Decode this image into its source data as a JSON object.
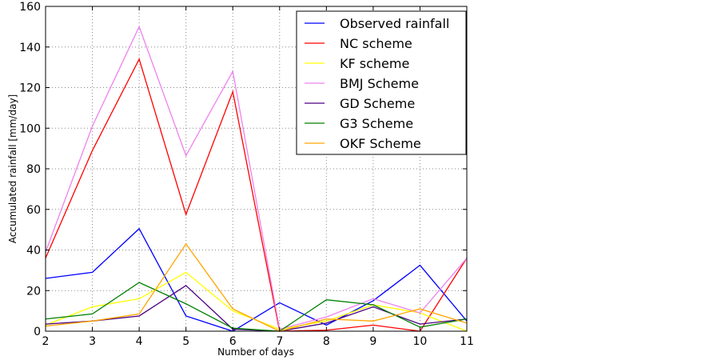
{
  "chart_data": {
    "type": "line",
    "title": "",
    "xlabel": "Number of days",
    "ylabel": "Accumulated rainfall [mm/day]",
    "x": [
      2,
      3,
      4,
      5,
      6,
      7,
      8,
      9,
      10,
      11
    ],
    "xlim": [
      2,
      11
    ],
    "ylim": [
      0,
      160
    ],
    "xticks": [
      "2",
      "3",
      "4",
      "5",
      "6",
      "7",
      "8",
      "9",
      "10",
      "11"
    ],
    "yticks": [
      "0",
      "20",
      "40",
      "60",
      "80",
      "100",
      "120",
      "140",
      "160"
    ],
    "grid": true,
    "legend_position": "top-right",
    "series": [
      {
        "name": "Observed rainfall",
        "color": "#0000ff",
        "values": [
          26,
          29,
          50.5,
          7.5,
          0,
          14,
          3,
          15,
          32.5,
          5
        ]
      },
      {
        "name": "NC scheme",
        "color": "#ff0000",
        "values": [
          36,
          89,
          134,
          57.5,
          118,
          0,
          0.5,
          3,
          0,
          36
        ]
      },
      {
        "name": "KF scheme",
        "color": "#ffff00",
        "values": [
          3,
          12,
          16,
          29,
          10,
          1,
          5,
          13,
          9,
          0
        ]
      },
      {
        "name": "BMJ Scheme",
        "color": "#ee82ee",
        "values": [
          39,
          101,
          150,
          86.5,
          128,
          1,
          7,
          16,
          9,
          36
        ]
      },
      {
        "name": "GD Scheme",
        "color": "#4b0082",
        "values": [
          3.5,
          5,
          7.5,
          22.5,
          1,
          0,
          4,
          12,
          3.5,
          6
        ]
      },
      {
        "name": "G3 Scheme",
        "color": "#008000",
        "values": [
          6,
          8.5,
          24,
          13.5,
          1.5,
          0,
          15.5,
          13,
          2,
          6
        ]
      },
      {
        "name": "OKF Scheme",
        "color": "#ffa500",
        "values": [
          2.5,
          5,
          8.5,
          43,
          11,
          0,
          6,
          5,
          11,
          4
        ]
      }
    ]
  }
}
